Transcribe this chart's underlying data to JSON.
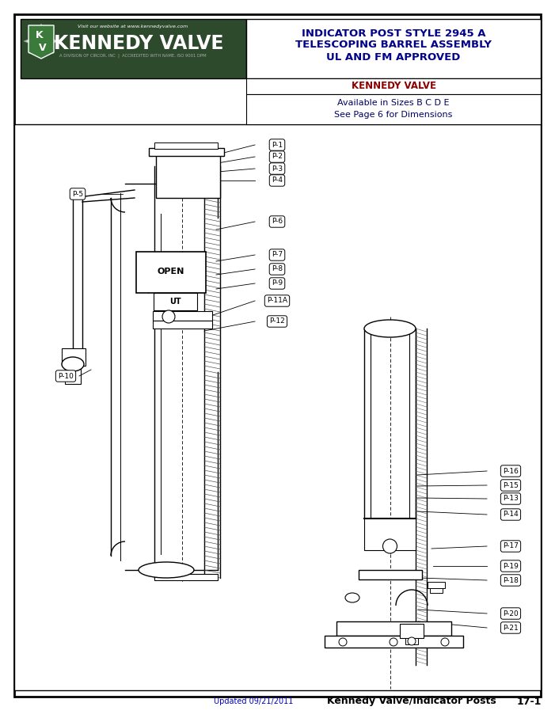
{
  "page_title_line1": "INDICATOR POST STYLE 2945 A",
  "page_title_line2": "TELESCOPING BARREL ASSEMBLY",
  "page_title_line3": "UL AND FM APPROVED",
  "company_name": "KENNEDY VALVE",
  "subtitle_line1": "Available in Sizes B C D E",
  "subtitle_line2": "See Page 6 for Dimensions",
  "footer_left": "Updated 09/21/2011",
  "footer_center": "Kennedy Valve/Indicator Posts",
  "footer_right": "17-1",
  "title_color": "#00008B",
  "company_color": "#8B0000",
  "subtitle_color": "#000066",
  "footer_update_color": "#0000cc",
  "logo_bg": "#2d4a2d",
  "logo_text_color": "#ffffff",
  "logo_subtext_color": "#aaaaaa",
  "border_lw": 1.5
}
